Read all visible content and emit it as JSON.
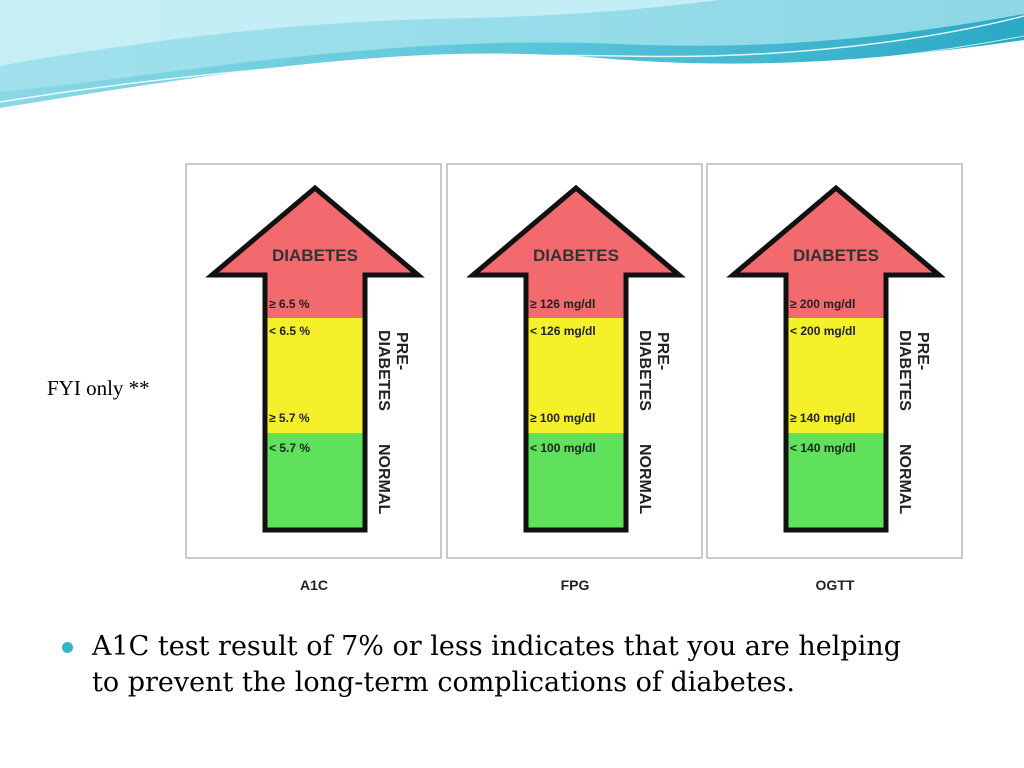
{
  "slide": {
    "side_note": "FYI only **",
    "bullet_lines": [
      "A1C test result of 7% or less indicates that you are helping",
      "to prevent the long-term complications of diabetes."
    ]
  },
  "figure": {
    "panels": [
      {
        "test": "A1C",
        "head_label": "DIABETES",
        "values": [
          "≥ 6.5 %",
          "< 6.5 %",
          "≥ 5.7 %",
          "< 5.7 %"
        ],
        "side_labels": [
          "PRE-",
          "DIABETES",
          "NORMAL"
        ]
      },
      {
        "test": "FPG",
        "head_label": "DIABETES",
        "values": [
          "≥ 126 mg/dl",
          "< 126 mg/dl",
          "≥ 100 mg/dl",
          "< 100 mg/dl"
        ],
        "side_labels": [
          "PRE-",
          "DIABETES",
          "NORMAL"
        ]
      },
      {
        "test": "OGTT",
        "head_label": "DIABETES",
        "values": [
          "≥ 200 mg/dl",
          "< 200 mg/dl",
          "≥ 140 mg/dl",
          "< 140 mg/dl"
        ],
        "side_labels": [
          "PRE-",
          "DIABETES",
          "NORMAL"
        ]
      }
    ],
    "colors": {
      "diabetes": "#f26a6e",
      "prediabetes": "#f4f12b",
      "normal": "#5fe15c",
      "outline": "#111111",
      "panel_border": "#b9b9b9"
    }
  },
  "theme": {
    "wave_light": "#bfe9f0",
    "wave_mid": "#7fd2e1",
    "wave_dark": "#2aa9c4",
    "bullet_color": "#34b3c6"
  }
}
